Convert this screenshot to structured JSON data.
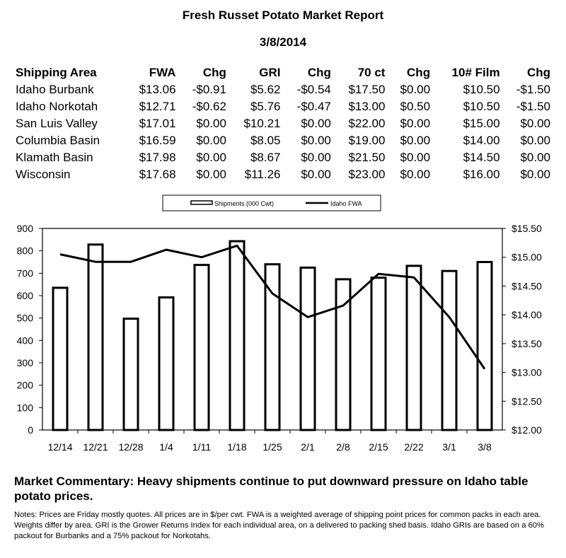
{
  "report": {
    "title": "Fresh Russet Potato Market Report",
    "date": "3/8/2014"
  },
  "price_table": {
    "columns": [
      "Shipping Area",
      "FWA",
      "Chg",
      "GRI",
      "Chg",
      "70 ct",
      "Chg",
      "10# Film",
      "Chg"
    ],
    "rows": [
      [
        "Idaho Burbank",
        "$13.06",
        "-$0.91",
        "$5.62",
        "-$0.54",
        "$17.50",
        "$0.00",
        "$10.50",
        "-$1.50"
      ],
      [
        "Idaho Norkotah",
        "$12.71",
        "-$0.62",
        "$5.76",
        "-$0.47",
        "$13.00",
        "$0.50",
        "$10.50",
        "-$1.50"
      ],
      [
        "San Luis Valley",
        "$17.01",
        "$0.00",
        "$10.21",
        "$0.00",
        "$22.00",
        "$0.00",
        "$15.00",
        "$0.00"
      ],
      [
        "Columbia Basin",
        "$16.59",
        "$0.00",
        "$8.05",
        "$0.00",
        "$19.00",
        "$0.00",
        "$14.00",
        "$0.00"
      ],
      [
        "Klamath Basin",
        "$17.98",
        "$0.00",
        "$8.67",
        "$0.00",
        "$21.50",
        "$0.00",
        "$14.50",
        "$0.00"
      ],
      [
        "Wisconsin",
        "$17.68",
        "$0.00",
        "$11.26",
        "$0.00",
        "$23.00",
        "$0.00",
        "$16.00",
        "$0.00"
      ]
    ]
  },
  "chart_data": {
    "type": "bar",
    "categories": [
      "12/14",
      "12/21",
      "12/28",
      "1/4",
      "1/11",
      "1/18",
      "1/25",
      "2/1",
      "2/8",
      "2/15",
      "2/22",
      "3/1",
      "3/8"
    ],
    "series": [
      {
        "name": "Shipments (000 Cwt)",
        "type": "bar",
        "axis": "left",
        "values": [
          635,
          828,
          497,
          592,
          737,
          843,
          740,
          725,
          673,
          680,
          733,
          710,
          750
        ]
      },
      {
        "name": "Idaho FWA",
        "type": "line",
        "axis": "right",
        "values": [
          15.05,
          14.92,
          14.92,
          15.13,
          15.0,
          15.2,
          14.37,
          13.96,
          14.16,
          14.71,
          14.65,
          13.96,
          13.06
        ]
      }
    ],
    "left_axis": {
      "ylim": [
        0,
        900
      ],
      "ticks": [
        "0",
        "100",
        "200",
        "300",
        "400",
        "500",
        "600",
        "700",
        "800",
        "900"
      ]
    },
    "right_axis": {
      "ylim": [
        12.0,
        15.5
      ],
      "ticks": [
        "$12.00",
        "$12.50",
        "$13.00",
        "$13.50",
        "$14.00",
        "$14.50",
        "$15.00",
        "$15.50"
      ]
    },
    "legend_position": "top-center",
    "grid": false
  },
  "commentary": "Market Commentary: Heavy shipments continue to put downward pressure on Idaho table potato prices.",
  "notes": "Notes: Prices are Friday mostly quotes. All prices are in $/per cwt. FWA is a weighted average of shipping point prices for  common packs in each area. Weights differ by area. GRI is the Grower Returns Index for each individual area, on a delivered to packing shed basis. Idaho GRIs are based on a 60% packout for Burbanks and a 75% packout for Norkotahs.",
  "colors": {
    "ink": "#000000",
    "background": "#ffffff"
  }
}
